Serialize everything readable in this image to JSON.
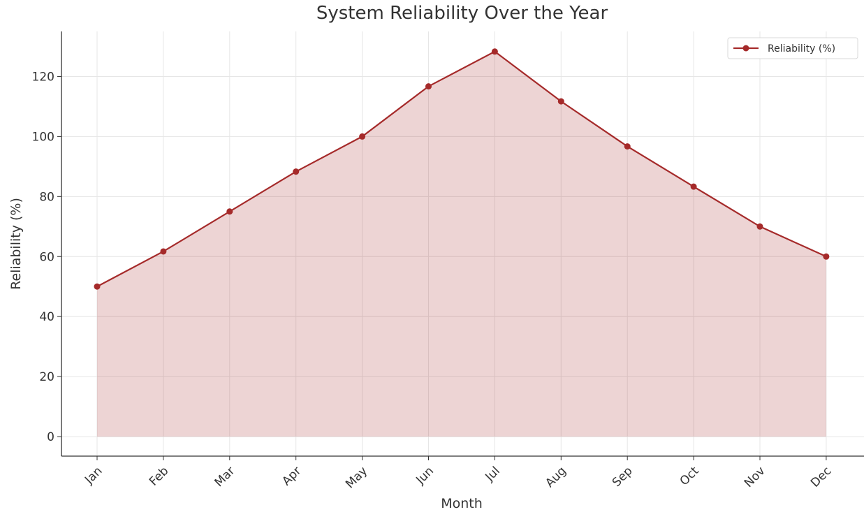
{
  "chart_data": {
    "type": "area",
    "title": "System Reliability Over the Year",
    "xlabel": "Month",
    "ylabel": "Reliability (%)",
    "categories": [
      "Jan",
      "Feb",
      "Mar",
      "Apr",
      "May",
      "Jun",
      "Jul",
      "Aug",
      "Sep",
      "Oct",
      "Nov",
      "Dec"
    ],
    "series": [
      {
        "name": "Reliability (%)",
        "values": [
          50,
          61.7,
          75,
          88.3,
          100,
          116.7,
          128.3,
          111.7,
          96.7,
          83.3,
          70,
          60
        ]
      }
    ],
    "yticks": [
      0,
      20,
      40,
      60,
      80,
      100,
      120
    ],
    "ylim": [
      -6.5,
      135
    ],
    "grid": true,
    "legend_position": "top-right",
    "colors": {
      "line": "#a52a2a",
      "fill": "#a52a2a",
      "grid": "#e6e6e6",
      "axis": "#333333"
    }
  }
}
